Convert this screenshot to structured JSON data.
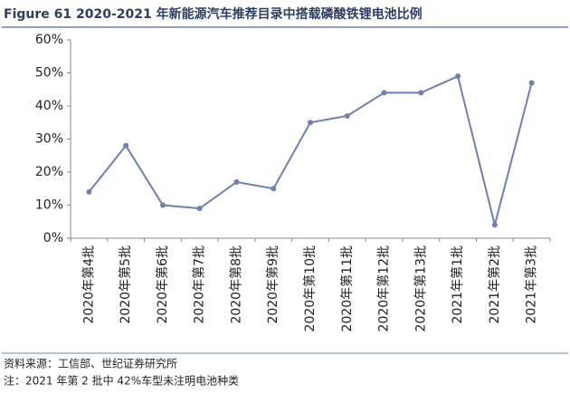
{
  "chart_data": {
    "type": "line",
    "title": "Figure 61 2020-2021 年新能源汽车推荐目录中搭载磷酸铁锂电池比例",
    "categories": [
      "2020年第4批",
      "2020年第5批",
      "2020年第6批",
      "2020年第7批",
      "2020年第8批",
      "2020年第9批",
      "2020年第10批",
      "2020年第11批",
      "2020年第12批",
      "2020年第13批",
      "2021年第1批",
      "2021年第2批",
      "2021年第3批"
    ],
    "series": [
      {
        "name": "磷酸铁锂电池比例",
        "color": "#6b80b5",
        "values": [
          14,
          28,
          10,
          9,
          17,
          15,
          35,
          37,
          44,
          44,
          49,
          4,
          47
        ]
      }
    ],
    "ylim": [
      0,
      60
    ],
    "yticks": [
      {
        "value": 0,
        "label": "0%"
      },
      {
        "value": 10,
        "label": "10%"
      },
      {
        "value": 20,
        "label": "20%"
      },
      {
        "value": 30,
        "label": "30%"
      },
      {
        "value": 40,
        "label": "40%"
      },
      {
        "value": 50,
        "label": "50%"
      },
      {
        "value": 60,
        "label": "60%"
      }
    ],
    "grid": false,
    "source": "资料来源：工信部、世纪证券研究所",
    "note": "注：2021 年第 2 批中 42%车型未注明电池种类"
  }
}
